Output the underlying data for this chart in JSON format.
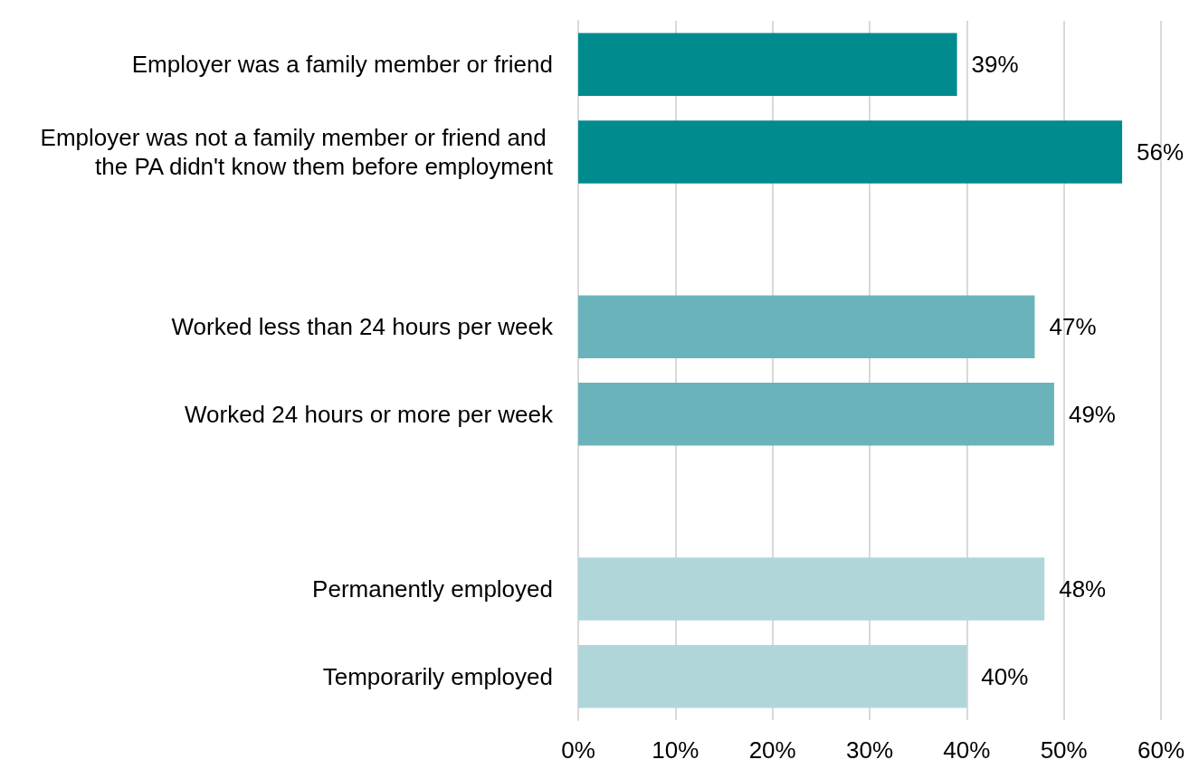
{
  "chart_data": {
    "type": "bar",
    "orientation": "horizontal",
    "categories": [
      "Employer was a family member or friend",
      "Employer was not a family member or friend and the PA didn't know them before employment",
      null,
      "Worked less than 24 hours per week",
      "Worked 24 hours or more per week",
      null,
      "Permanently employed",
      "Temporarily employed"
    ],
    "values": [
      39,
      56,
      null,
      47,
      49,
      null,
      48,
      40
    ],
    "colors": [
      "#008b8f",
      "#008b8f",
      null,
      "#6ab3bb",
      "#6ab3bb",
      null,
      "#b0d6d9",
      "#b0d6d9"
    ],
    "value_labels": [
      "39%",
      "56%",
      null,
      "47%",
      "49%",
      null,
      "48%",
      "40%"
    ],
    "xlim": [
      0,
      60
    ],
    "xticks": [
      {
        "value": 0,
        "label": "0%"
      },
      {
        "value": 10,
        "label": "10%"
      },
      {
        "value": 20,
        "label": "20%"
      },
      {
        "value": 30,
        "label": "30%"
      },
      {
        "value": 40,
        "label": "40%"
      },
      {
        "value": 50,
        "label": "50%"
      },
      {
        "value": 60,
        "label": "60%"
      }
    ],
    "grid": "x"
  }
}
